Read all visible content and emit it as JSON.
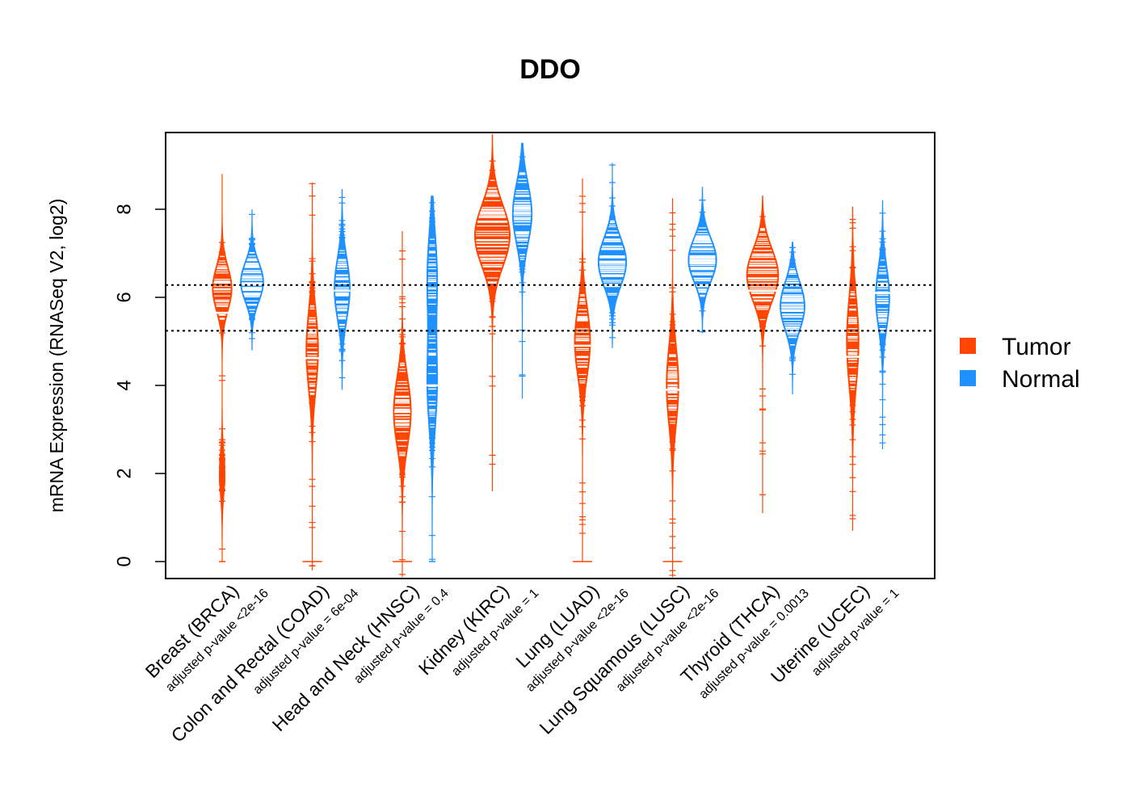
{
  "chart_data": {
    "type": "beanplot",
    "title": "DDO",
    "xlabel": "",
    "ylabel": "mRNA Expression (RNASeq V2, log2)",
    "ylim": [
      -0.38,
      9.75
    ],
    "yticks": [
      0,
      2,
      4,
      6,
      8
    ],
    "reference_lines": [
      6.28,
      5.24
    ],
    "legend": {
      "position": "right",
      "entries": [
        {
          "label": "Tumor",
          "color": "#FF4500"
        },
        {
          "label": "Normal",
          "color": "#1E90FF"
        }
      ]
    },
    "colors": {
      "tumor": "#FF4500",
      "normal": "#1E90FF"
    },
    "categories": [
      {
        "label": "Breast (BRCA)",
        "pvalue": "adjusted p-value <2e-16",
        "tumor": {
          "min": 0,
          "max": 8.8,
          "median": 5.65,
          "modes": [
            [
              6.2,
              0.7
            ],
            [
              2.0,
              0.2
            ]
          ],
          "sd": 0.5,
          "width": 0.55
        },
        "normal": {
          "min": 4.8,
          "max": 8.0,
          "median": 6.32,
          "modes": [
            [
              6.35,
              1.0
            ]
          ],
          "sd": 0.45,
          "width": 0.65
        }
      },
      {
        "label": "Colon and Rectal (COAD)",
        "pvalue": "adjusted p-value = 6e-04",
        "tumor": {
          "min": -0.2,
          "max": 8.6,
          "median": 4.62,
          "modes": [
            [
              4.8,
              1.0
            ]
          ],
          "sd": 0.9,
          "width": 0.35
        },
        "normal": {
          "min": 3.9,
          "max": 8.45,
          "median": 6.15,
          "modes": [
            [
              6.2,
              1.0
            ]
          ],
          "sd": 0.7,
          "width": 0.45
        }
      },
      {
        "label": "Head and Neck (HNSC)",
        "pvalue": "adjusted p-value = 0.4",
        "tumor": {
          "min": -0.35,
          "max": 7.5,
          "median": 3.4,
          "modes": [
            [
              3.4,
              1.0
            ]
          ],
          "sd": 0.8,
          "width": 0.5
        },
        "normal": {
          "min": 0.0,
          "max": 8.3,
          "median": 4.0,
          "modes": [
            [
              6.5,
              0.6
            ],
            [
              4.0,
              0.6
            ]
          ],
          "sd": 1.0,
          "width": 0.3
        }
      },
      {
        "label": "Kidney (KIRC)",
        "pvalue": "adjusted p-value = 1",
        "tumor": {
          "min": 1.6,
          "max": 9.7,
          "median": 7.3,
          "modes": [
            [
              7.4,
              1.0
            ]
          ],
          "sd": 0.7,
          "width": 1.0
        },
        "normal": {
          "min": 3.7,
          "max": 9.5,
          "median": 7.9,
          "modes": [
            [
              7.9,
              1.0
            ]
          ],
          "sd": 0.7,
          "width": 0.55
        }
      },
      {
        "label": "Lung (LUAD)",
        "pvalue": "adjusted p-value <2e-16",
        "tumor": {
          "min": 0.0,
          "max": 8.7,
          "median": 4.9,
          "modes": [
            [
              5.0,
              1.0
            ]
          ],
          "sd": 0.8,
          "width": 0.45
        },
        "normal": {
          "min": 4.85,
          "max": 9.05,
          "median": 6.8,
          "modes": [
            [
              6.8,
              1.0
            ]
          ],
          "sd": 0.55,
          "width": 0.8
        }
      },
      {
        "label": "Lung Squamous (LUSC)",
        "pvalue": "adjusted p-value <2e-16",
        "tumor": {
          "min": -0.35,
          "max": 8.25,
          "median": 3.9,
          "modes": [
            [
              4.0,
              1.0
            ]
          ],
          "sd": 0.9,
          "width": 0.35
        },
        "normal": {
          "min": 5.2,
          "max": 8.5,
          "median": 6.85,
          "modes": [
            [
              6.85,
              1.0
            ]
          ],
          "sd": 0.5,
          "width": 0.8
        }
      },
      {
        "label": "Thyroid (THCA)",
        "pvalue": "adjusted p-value = 0.0013",
        "tumor": {
          "min": 1.1,
          "max": 8.3,
          "median": 6.15,
          "modes": [
            [
              6.5,
              1.0
            ]
          ],
          "sd": 0.6,
          "width": 0.9
        },
        "normal": {
          "min": 3.8,
          "max": 7.25,
          "median": 5.7,
          "modes": [
            [
              5.8,
              1.0
            ]
          ],
          "sd": 0.55,
          "width": 0.7
        }
      },
      {
        "label": "Uterine (UCEC)",
        "pvalue": "adjusted p-value = 1",
        "tumor": {
          "min": 0.7,
          "max": 8.05,
          "median": 4.65,
          "modes": [
            [
              5.0,
              1.0
            ]
          ],
          "sd": 1.0,
          "width": 0.35
        },
        "normal": {
          "min": 2.55,
          "max": 8.2,
          "median": 6.1,
          "modes": [
            [
              6.0,
              1.0
            ]
          ],
          "sd": 0.7,
          "width": 0.4
        }
      }
    ]
  }
}
